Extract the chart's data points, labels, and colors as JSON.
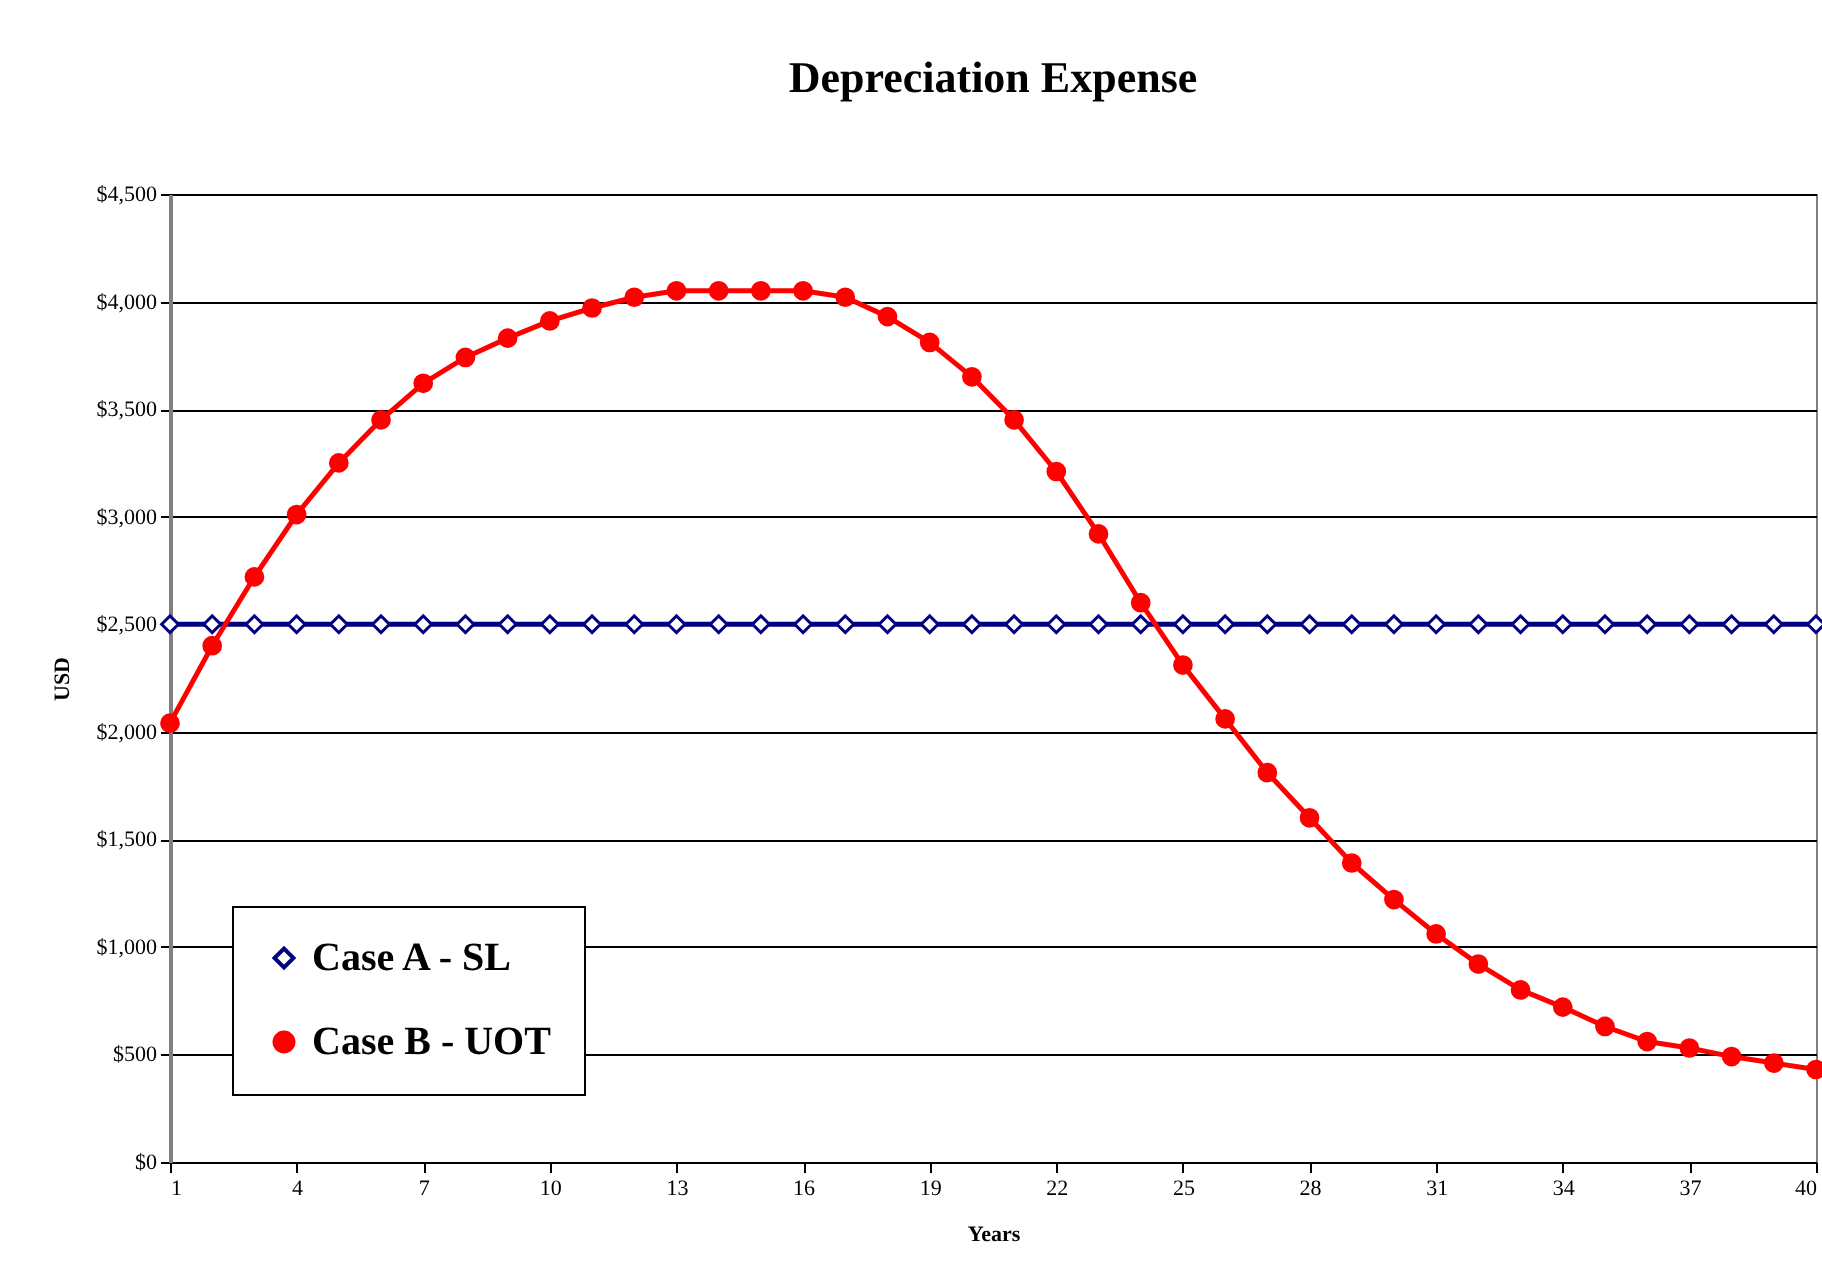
{
  "chart_data": {
    "type": "line",
    "title": "Depreciation Expense",
    "xlabel": "Years",
    "ylabel": "USD",
    "x": [
      1,
      2,
      3,
      4,
      5,
      6,
      7,
      8,
      9,
      10,
      11,
      12,
      13,
      14,
      15,
      16,
      17,
      18,
      19,
      20,
      21,
      22,
      23,
      24,
      25,
      26,
      27,
      28,
      29,
      30,
      31,
      32,
      33,
      34,
      35,
      36,
      37,
      38,
      39,
      40
    ],
    "series": [
      {
        "name": "Case A - SL",
        "color": "#000080",
        "marker": "diamond",
        "values": [
          2500,
          2500,
          2500,
          2500,
          2500,
          2500,
          2500,
          2500,
          2500,
          2500,
          2500,
          2500,
          2500,
          2500,
          2500,
          2500,
          2500,
          2500,
          2500,
          2500,
          2500,
          2500,
          2500,
          2500,
          2500,
          2500,
          2500,
          2500,
          2500,
          2500,
          2500,
          2500,
          2500,
          2500,
          2500,
          2500,
          2500,
          2500,
          2500,
          2500
        ]
      },
      {
        "name": "Case B - UOT",
        "color": "#ff0000",
        "marker": "circle",
        "values": [
          2040,
          2400,
          2720,
          3010,
          3250,
          3450,
          3620,
          3740,
          3830,
          3910,
          3970,
          4020,
          4050,
          4050,
          4050,
          4050,
          4020,
          3930,
          3810,
          3650,
          3450,
          3210,
          2920,
          2600,
          2310,
          2060,
          1810,
          1600,
          1390,
          1220,
          1060,
          920,
          800,
          720,
          630,
          560,
          530,
          490,
          460,
          430
        ]
      }
    ],
    "xlim": [
      1,
      40
    ],
    "xticks": [
      1,
      4,
      7,
      10,
      13,
      16,
      19,
      22,
      25,
      28,
      31,
      34,
      37,
      40
    ],
    "ylim": [
      0,
      4500
    ],
    "yticks": [
      {
        "value": 0,
        "label": "$0"
      },
      {
        "value": 500,
        "label": "$500"
      },
      {
        "value": 1000,
        "label": "$1,000"
      },
      {
        "value": 1500,
        "label": "$1,500"
      },
      {
        "value": 2000,
        "label": "$2,000"
      },
      {
        "value": 2500,
        "label": "$2,500"
      },
      {
        "value": 3000,
        "label": "$3,000"
      },
      {
        "value": 3500,
        "label": "$3,500"
      },
      {
        "value": 4000,
        "label": "$4,000"
      },
      {
        "value": 4500,
        "label": "$4,500"
      }
    ],
    "grid": "y",
    "legend": "bottom left",
    "line_style": "solid"
  }
}
